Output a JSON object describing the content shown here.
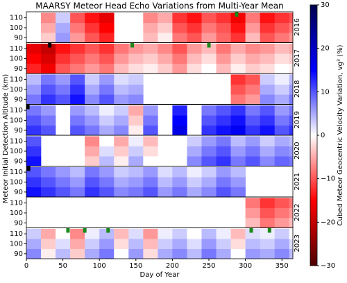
{
  "chart_data": {
    "type": "heatmap",
    "title": "MAARSY Meteor Head Echo Variations from Multi-Year Mean",
    "xlabel": "Day of Year",
    "ylabel": "Meteor Initial Detection Altitude (km)",
    "xlim": [
      0,
      365
    ],
    "xticks": [
      0,
      50,
      100,
      150,
      200,
      250,
      300,
      350
    ],
    "ylim": [
      85,
      116
    ],
    "yticks": [
      90,
      100,
      110
    ],
    "x_edges": [
      0,
      20,
      40,
      60,
      80,
      100,
      120,
      140,
      160,
      180,
      200,
      220,
      240,
      260,
      280,
      300,
      320,
      340,
      360,
      365
    ],
    "y_edges": [
      85,
      95,
      105,
      115
    ],
    "panels": [
      {
        "label": "2016",
        "values": [
          [
            null,
            -3,
            6,
            -6,
            -10,
            -13,
            null,
            null,
            -4,
            -1,
            -8,
            -10,
            -6,
            -9,
            -12,
            -4,
            -10,
            -8,
            -6
          ],
          [
            null,
            -5,
            5,
            -8,
            -12,
            -15,
            null,
            null,
            -5,
            -3,
            -10,
            -12,
            -8,
            -10,
            -14,
            -6,
            -12,
            -10,
            -8
          ],
          [
            null,
            -7,
            3,
            -10,
            -14,
            -17,
            null,
            null,
            -7,
            -5,
            -12,
            -14,
            -10,
            -12,
            -16,
            -8,
            -14,
            -12,
            -10
          ]
        ],
        "markers": [
          {
            "day": 288,
            "color": "#1a8a1a"
          }
        ]
      },
      {
        "label": "2017",
        "values": [
          [
            -13,
            -16,
            -10,
            -8,
            -6,
            -8,
            -4,
            -2,
            -1,
            -3,
            -6,
            -2,
            0,
            -4,
            -1,
            -3,
            -2,
            0,
            -1
          ],
          [
            -15,
            -18,
            -12,
            -10,
            -8,
            -10,
            -6,
            -4,
            -3,
            -5,
            -8,
            -4,
            -2,
            -6,
            -3,
            -5,
            -4,
            -2,
            -3
          ],
          [
            -17,
            -20,
            -14,
            -12,
            -10,
            -12,
            -8,
            -6,
            -5,
            -7,
            -10,
            -6,
            -4,
            -8,
            -5,
            -7,
            -6,
            -4,
            -5
          ]
        ],
        "markers": [
          {
            "day": 32,
            "color": "#000000"
          },
          {
            "day": 145,
            "color": "#1a8a1a"
          },
          {
            "day": 250,
            "color": "#1a8a1a"
          }
        ]
      },
      {
        "label": "2018",
        "values": [
          [
            8,
            12,
            10,
            14,
            7,
            10,
            6,
            7,
            null,
            null,
            null,
            null,
            null,
            null,
            -8,
            -6,
            7,
            5,
            8
          ],
          [
            6,
            10,
            8,
            12,
            5,
            8,
            4,
            5,
            null,
            null,
            null,
            null,
            null,
            null,
            -10,
            -8,
            5,
            3,
            6
          ],
          [
            4,
            8,
            6,
            10,
            3,
            6,
            2,
            3,
            null,
            null,
            null,
            null,
            null,
            null,
            -12,
            -10,
            3,
            1,
            4
          ]
        ],
        "markers": []
      },
      {
        "label": "2019",
        "values": [
          [
            12,
            10,
            null,
            10,
            8,
            5,
            7,
            -1,
            10,
            null,
            17,
            null,
            12,
            14,
            16,
            12,
            14,
            10,
            12
          ],
          [
            10,
            8,
            null,
            8,
            6,
            3,
            5,
            -3,
            8,
            null,
            15,
            null,
            10,
            12,
            14,
            10,
            12,
            8,
            10
          ],
          [
            8,
            6,
            null,
            6,
            4,
            1,
            3,
            -5,
            6,
            null,
            13,
            null,
            8,
            10,
            12,
            8,
            10,
            6,
            8
          ]
        ],
        "markers": [
          {
            "day": 2,
            "color": "#000000"
          }
        ]
      },
      {
        "label": "2020",
        "values": [
          [
            14,
            null,
            null,
            null,
            -3,
            4,
            -1,
            5,
            0,
            null,
            null,
            7,
            10,
            12,
            8,
            10,
            7,
            9,
            8
          ],
          [
            12,
            null,
            null,
            null,
            -5,
            2,
            -3,
            3,
            -2,
            null,
            null,
            5,
            8,
            10,
            6,
            8,
            5,
            7,
            6
          ],
          [
            10,
            null,
            null,
            null,
            -7,
            0,
            -5,
            1,
            -4,
            null,
            null,
            3,
            6,
            8,
            4,
            6,
            3,
            5,
            4
          ]
        ],
        "markers": []
      },
      {
        "label": "2021",
        "values": [
          [
            14,
            12,
            10,
            8,
            12,
            10,
            7,
            8,
            10,
            6,
            8,
            5,
            7,
            10,
            8,
            null,
            null,
            null,
            null
          ],
          [
            12,
            10,
            8,
            6,
            10,
            8,
            5,
            6,
            8,
            4,
            6,
            3,
            5,
            8,
            6,
            null,
            null,
            null,
            null
          ],
          [
            10,
            8,
            6,
            4,
            8,
            6,
            3,
            4,
            6,
            2,
            4,
            1,
            3,
            6,
            4,
            null,
            null,
            null,
            null
          ]
        ],
        "markers": [
          {
            "day": 3,
            "color": "#000000"
          }
        ]
      },
      {
        "label": "2022",
        "values": [
          [
            null,
            null,
            null,
            null,
            null,
            null,
            null,
            null,
            null,
            null,
            null,
            null,
            null,
            null,
            null,
            -4,
            -8,
            -6,
            -4
          ],
          [
            null,
            null,
            null,
            null,
            null,
            null,
            null,
            null,
            null,
            null,
            null,
            null,
            null,
            null,
            null,
            -6,
            -10,
            -8,
            -6
          ],
          [
            null,
            null,
            null,
            null,
            null,
            null,
            null,
            null,
            null,
            null,
            null,
            null,
            null,
            null,
            null,
            -8,
            -12,
            -10,
            -8
          ]
        ],
        "markers": []
      },
      {
        "label": "2023",
        "values": [
          [
            7,
            -1,
            4,
            -3,
            5,
            8,
            0,
            6,
            -2,
            5,
            7,
            4,
            8,
            5,
            0,
            6,
            5,
            7,
            4
          ],
          [
            5,
            -3,
            2,
            -5,
            3,
            6,
            -2,
            4,
            -4,
            3,
            5,
            2,
            6,
            3,
            -2,
            4,
            3,
            5,
            2
          ],
          [
            3,
            -5,
            0,
            -7,
            1,
            4,
            -4,
            2,
            -6,
            1,
            3,
            0,
            4,
            1,
            -4,
            2,
            1,
            3,
            0
          ]
        ],
        "markers": [
          {
            "day": 57,
            "color": "#1a8a1a"
          },
          {
            "day": 80,
            "color": "#1a8a1a"
          },
          {
            "day": 112,
            "color": "#1a8a1a"
          },
          {
            "day": 308,
            "color": "#1a8a1a"
          },
          {
            "day": 333,
            "color": "#1a8a1a"
          }
        ]
      }
    ],
    "colorbar": {
      "label": "Cubed Meteor Geocentric Velocity Variation, vg³ (%)",
      "lim": [
        -30,
        30
      ],
      "ticks": [
        {
          "value": -30,
          "label": "−30"
        },
        {
          "value": -20,
          "label": "−20"
        },
        {
          "value": -10,
          "label": "−10"
        },
        0,
        10,
        20,
        30
      ],
      "colors": [
        "#4d0000",
        "#ff0000",
        "#ffffff",
        "#0000ff",
        "#00004d"
      ]
    }
  }
}
